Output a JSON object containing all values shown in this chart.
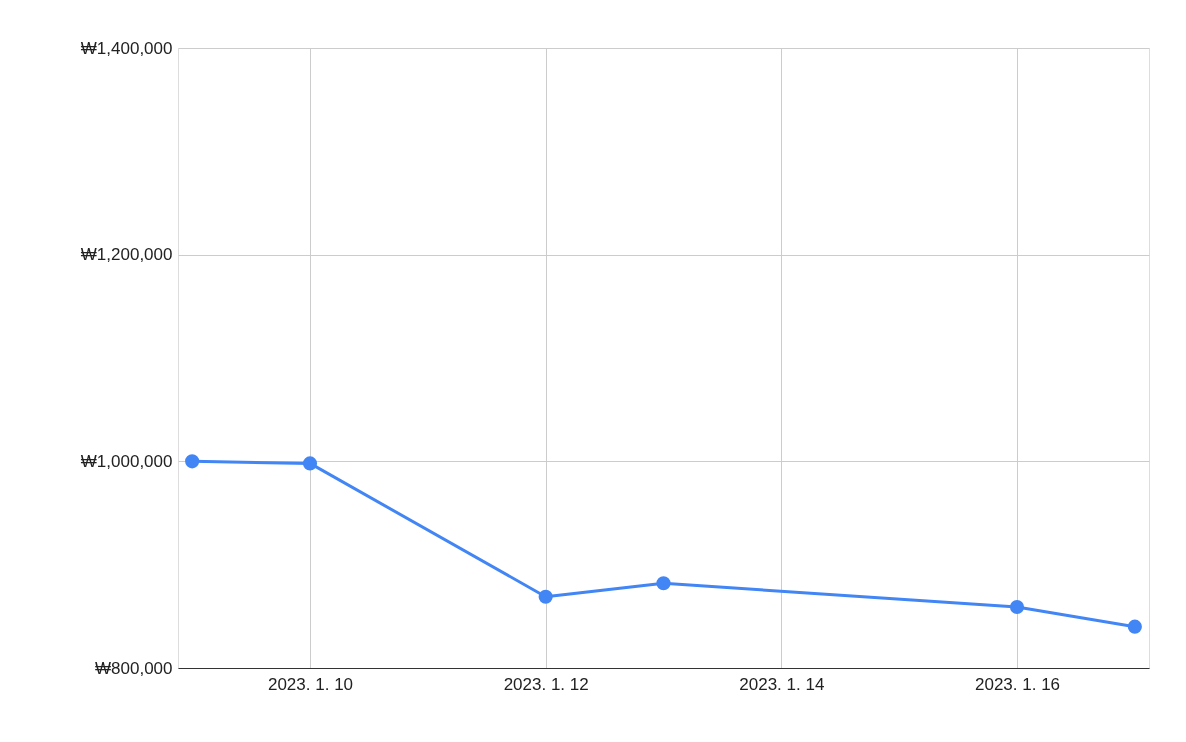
{
  "chart_data": {
    "type": "line",
    "x": [
      "2023-01-09",
      "2023-01-10",
      "2023-01-12",
      "2023-01-13",
      "2023-01-16",
      "2023-01-17"
    ],
    "series": [
      {
        "color": "#4285f4",
        "values": [
          1000000,
          998000,
          869000,
          882000,
          859000,
          840000
        ]
      }
    ],
    "xlim": [
      "2023-01-08T21:07",
      "2023-01-17T02:53"
    ],
    "xticks": [
      {
        "value": "2023-01-10",
        "label": "2023. 1. 10"
      },
      {
        "value": "2023-01-12",
        "label": "2023. 1. 12"
      },
      {
        "value": "2023-01-14",
        "label": "2023. 1. 14"
      },
      {
        "value": "2023-01-16",
        "label": "2023. 1. 16"
      }
    ],
    "ylim": [
      800000,
      1400000
    ],
    "yticks": [
      {
        "value": 800000,
        "label": "₩800,000"
      },
      {
        "value": 1000000,
        "label": "₩1,000,000"
      },
      {
        "value": 1200000,
        "label": "₩1,200,000"
      },
      {
        "value": 1400000,
        "label": "₩1,400,000"
      }
    ],
    "grid": true,
    "marker": "circle",
    "line_style": "solid"
  }
}
